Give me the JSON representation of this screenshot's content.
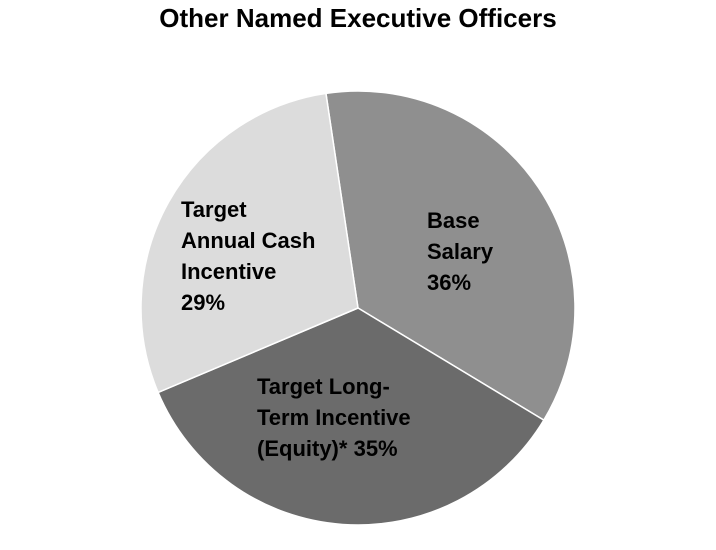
{
  "chart_data": {
    "type": "pie",
    "title": "Other Named Executive Officers",
    "categories": [
      "Base Salary",
      "Target Long-Term Incentive (Equity)*",
      "Target Annual Cash Incentive"
    ],
    "values": [
      36,
      35,
      29
    ],
    "value_labels": [
      "36%",
      "35%",
      "29%"
    ],
    "colors": [
      "#8f8f8f",
      "#6b6b6b",
      "#dcdcdc"
    ]
  }
}
